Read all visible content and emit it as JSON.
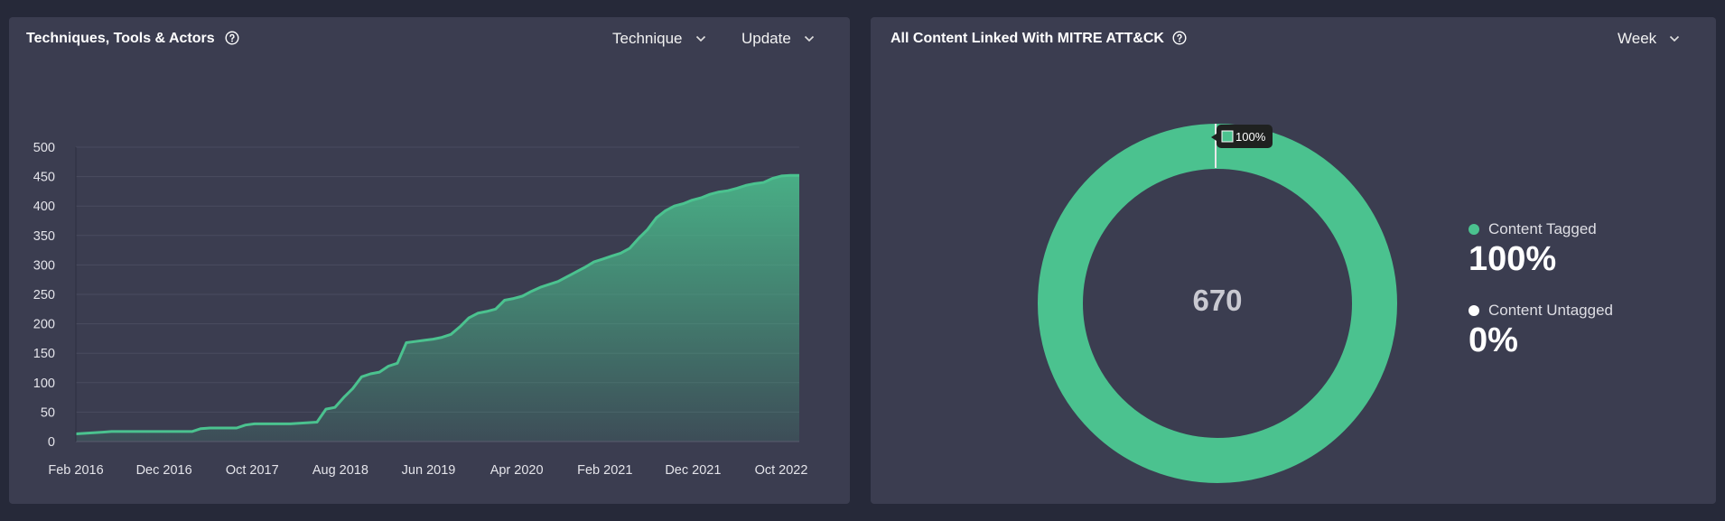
{
  "left_panel": {
    "title": "Techniques, Tools & Actors",
    "dropdown_type": "Technique",
    "dropdown_sort": "Update"
  },
  "right_panel": {
    "title": "All Content Linked With MITRE ATT&CK",
    "dropdown_period": "Week",
    "donut_center_value": "670",
    "tooltip_value": "100%",
    "legend": [
      {
        "label": "Content Tagged",
        "value": "100%",
        "color": "#4bc28f"
      },
      {
        "label": "Content Untagged",
        "value": "0%",
        "color": "#ffffff"
      }
    ]
  },
  "colors": {
    "background": "#262939",
    "panel": "#3b3d50",
    "accent": "#4bc28f"
  },
  "icons": [
    "help-icon",
    "chevron-down-icon",
    "square-icon"
  ],
  "chart_data": [
    {
      "type": "area",
      "title": "",
      "xlabel": "",
      "ylabel": "",
      "ylim": [
        0,
        500
      ],
      "y_ticks": [
        0,
        50,
        100,
        150,
        200,
        250,
        300,
        350,
        400,
        450,
        500
      ],
      "x_tick_labels": [
        "Feb 2016",
        "Dec 2016",
        "Oct 2017",
        "Aug 2018",
        "Jun 2019",
        "Apr 2020",
        "Feb 2021",
        "Dec 2021",
        "Oct 2022"
      ],
      "grid": true,
      "series": [
        {
          "x": [
            0,
            1,
            2,
            3,
            4,
            5,
            6,
            7,
            8,
            9,
            10,
            11,
            12,
            13,
            14,
            15,
            16,
            17,
            18,
            19,
            20,
            21,
            22,
            23,
            24,
            25,
            26,
            27,
            28,
            29,
            30,
            31,
            32,
            33,
            34,
            35,
            36,
            37,
            38,
            39,
            40,
            41,
            42,
            43,
            44,
            45,
            46,
            47,
            48,
            49,
            50,
            51,
            52,
            53,
            54,
            55,
            56,
            57,
            58,
            59,
            60,
            61,
            62,
            63,
            64,
            65,
            66,
            67,
            68,
            69,
            70,
            71,
            72,
            73,
            74,
            75,
            76,
            77,
            78,
            79,
            80,
            81
          ],
          "values": [
            13,
            14,
            15,
            16,
            17,
            17,
            17,
            17,
            17,
            17,
            17,
            17,
            17,
            17,
            22,
            23,
            23,
            23,
            23,
            28,
            30,
            30,
            30,
            30,
            30,
            31,
            32,
            33,
            55,
            58,
            75,
            90,
            110,
            115,
            118,
            128,
            133,
            168,
            170,
            172,
            174,
            177,
            182,
            195,
            210,
            218,
            221,
            225,
            240,
            243,
            247,
            255,
            262,
            267,
            272,
            280,
            288,
            296,
            305,
            310,
            315,
            320,
            328,
            345,
            360,
            380,
            392,
            400,
            404,
            410,
            414,
            420,
            424,
            426,
            430,
            435,
            438,
            440,
            447,
            451,
            452,
            452
          ]
        }
      ]
    },
    {
      "type": "pie",
      "title": "",
      "categories": [
        "Content Tagged",
        "Content Untagged"
      ],
      "values": [
        100,
        0
      ],
      "total": 670
    }
  ]
}
